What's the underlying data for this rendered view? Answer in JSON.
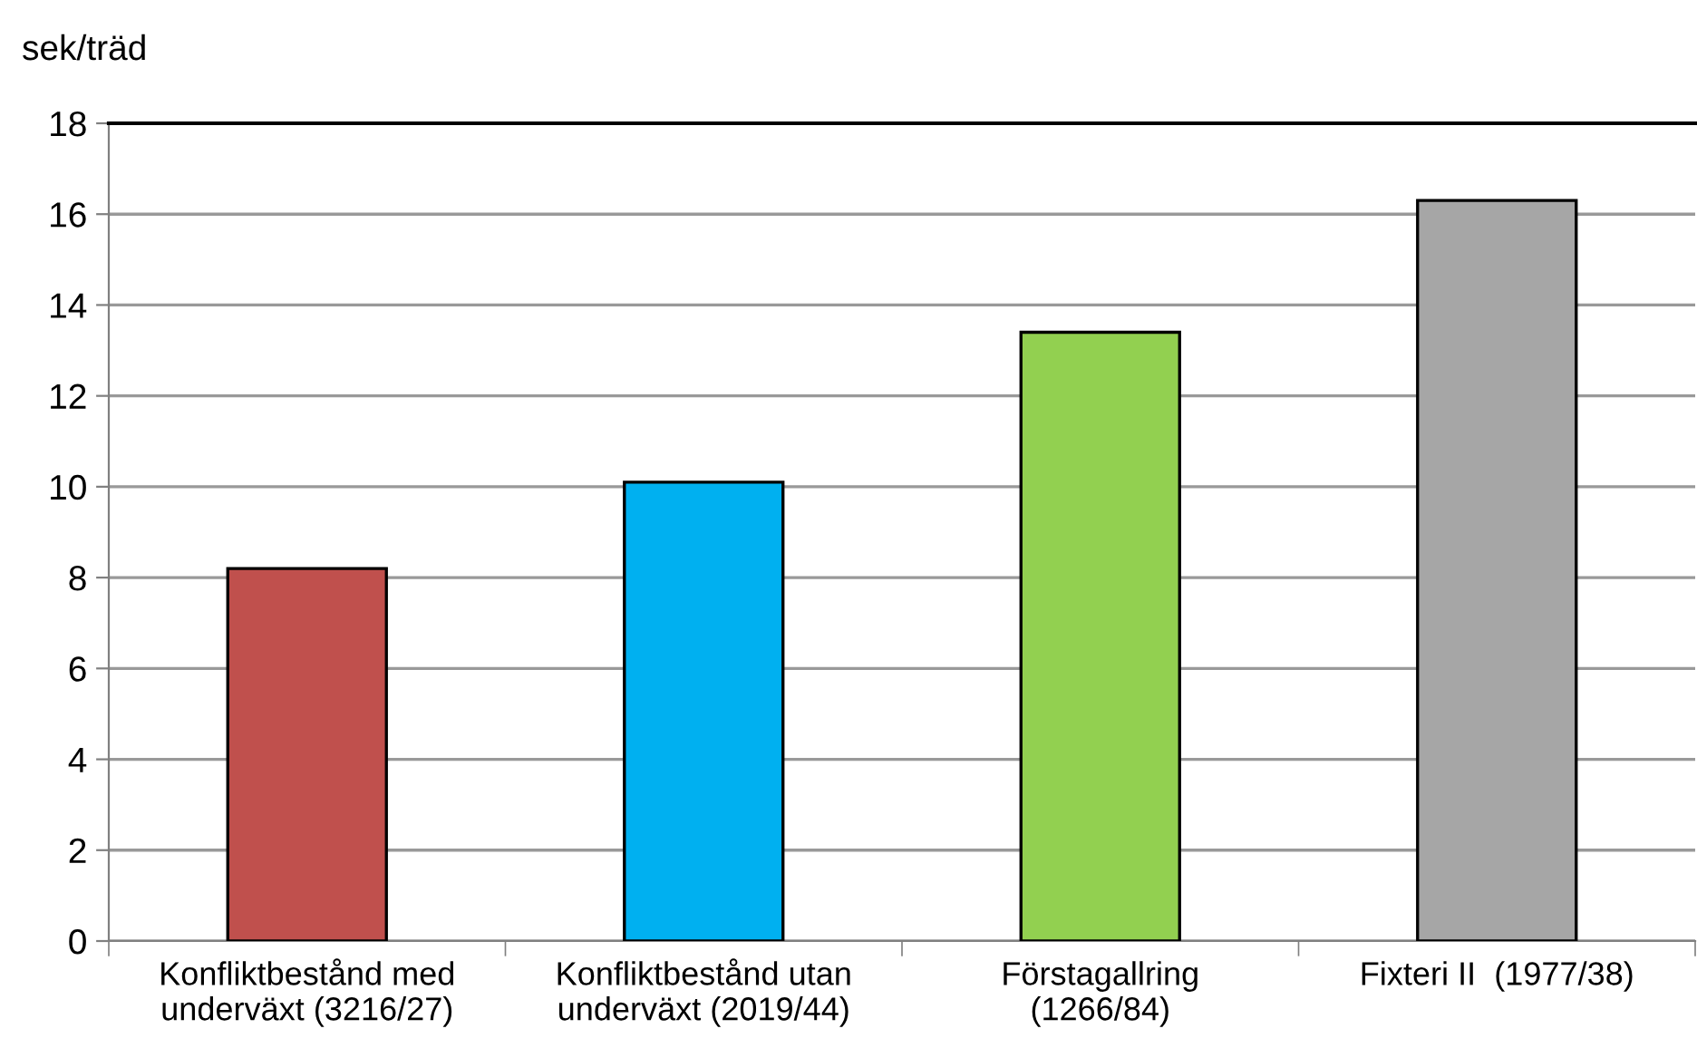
{
  "chart_data": {
    "type": "bar",
    "ylabel": "sek/träd",
    "categories": [
      "Konfliktbestånd med\nunderväxt (3216/27)",
      "Konfliktbestånd utan\nunderväxt (2019/44)",
      "Förstagallring\n(1266/84)",
      "Fixteri II  (1977/38)"
    ],
    "values": [
      8.2,
      10.1,
      13.4,
      16.3
    ],
    "colors": [
      "#c0504d",
      "#00b0f0",
      "#92d050",
      "#a6a6a6"
    ],
    "ylim": [
      0,
      18
    ],
    "yticks": [
      0,
      2,
      4,
      6,
      8,
      10,
      12,
      14,
      16,
      18
    ],
    "grid": "y",
    "legend": false
  }
}
